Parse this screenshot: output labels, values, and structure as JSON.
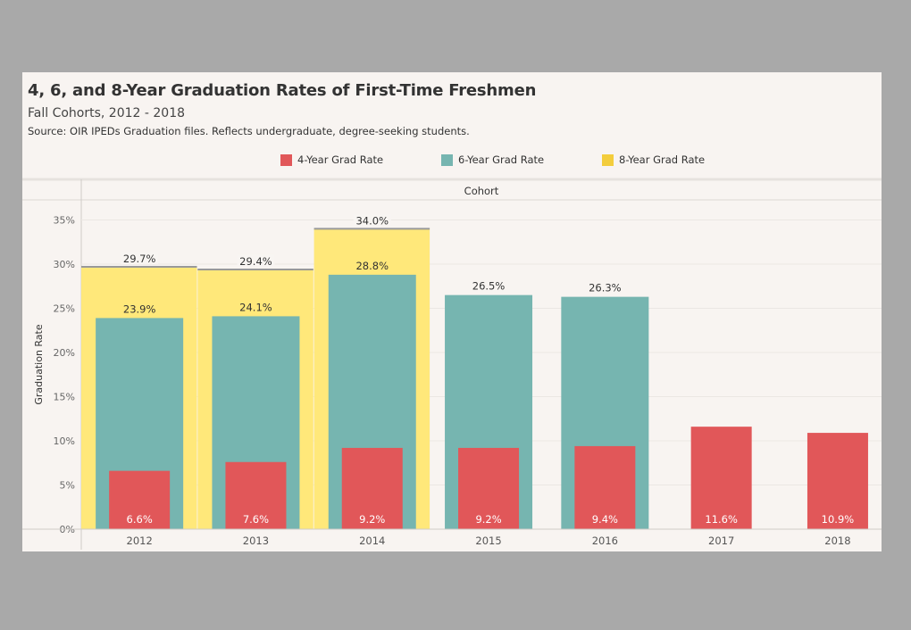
{
  "title": "4, 6, and 8-Year Graduation Rates of First-Time Freshmen",
  "subtitle": "Fall Cohorts, 2012 - 2018",
  "source": "Source: OIR IPEDs Graduation files. Reflects undergraduate, degree-seeking students.",
  "legend": [
    {
      "name": "4-Year Grad Rate",
      "color": "#e15759"
    },
    {
      "name": "6-Year Grad Rate",
      "color": "#76b5b0"
    },
    {
      "name": "8-Year Grad Rate",
      "color": "#ffe87a"
    }
  ],
  "chart_data": {
    "type": "bar",
    "title": "4, 6, and 8-Year Graduation Rates of First-Time Freshmen",
    "subtitle": "Fall Cohorts, 2012 - 2018",
    "xlabel": "Cohort",
    "ylabel": "Graduation Rate",
    "categories": [
      "2012",
      "2013",
      "2014",
      "2015",
      "2016",
      "2017",
      "2018"
    ],
    "ylim": [
      0,
      35
    ],
    "yticks": [
      0,
      5,
      10,
      15,
      20,
      25,
      30,
      35
    ],
    "ytick_labels": [
      "0%",
      "5%",
      "10%",
      "15%",
      "20%",
      "25%",
      "30%",
      "35%"
    ],
    "grid": true,
    "legend_position": "top",
    "series": [
      {
        "name": "4-Year Grad Rate",
        "values": [
          6.6,
          7.6,
          9.2,
          9.2,
          9.4,
          11.6,
          10.9
        ],
        "labels": [
          "6.6%",
          "7.6%",
          "9.2%",
          "9.2%",
          "9.4%",
          "11.6%",
          "10.9%"
        ]
      },
      {
        "name": "6-Year Grad Rate",
        "values": [
          23.9,
          24.1,
          28.8,
          26.5,
          26.3,
          null,
          null
        ],
        "labels": [
          "23.9%",
          "24.1%",
          "28.8%",
          "26.5%",
          "26.3%",
          null,
          null
        ]
      },
      {
        "name": "8-Year Grad Rate",
        "values": [
          29.7,
          29.4,
          34.0,
          null,
          null,
          null,
          null
        ],
        "labels": [
          "29.7%",
          "29.4%",
          "34.0%",
          null,
          null,
          null,
          null
        ]
      }
    ]
  }
}
